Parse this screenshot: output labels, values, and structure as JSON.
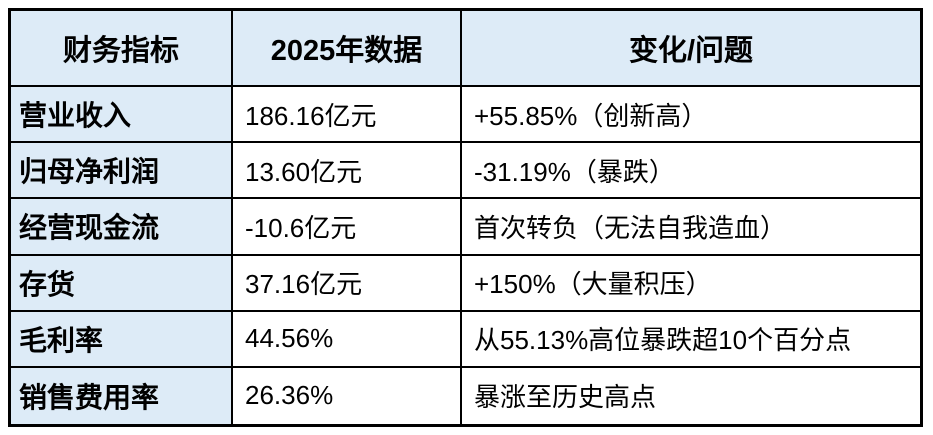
{
  "table": {
    "headers": [
      "财务指标",
      "2025年数据",
      "变化/问题"
    ],
    "rows": [
      [
        "营业收入",
        "186.16亿元",
        "+55.85%（创新高）"
      ],
      [
        "归母净利润",
        "13.60亿元",
        "-31.19%（暴跌）"
      ],
      [
        "经营现金流",
        "-10.6亿元",
        "首次转负（无法自我造血）"
      ],
      [
        "存货",
        "37.16亿元",
        "+150%（大量积压）"
      ],
      [
        "毛利率",
        "44.56%",
        "从55.13%高位暴跌超10个百分点"
      ],
      [
        "销售费用率",
        "26.36%",
        "暴涨至历史高点"
      ]
    ]
  },
  "colors": {
    "header_bg": "#DDEBF7",
    "row_label_bg": "#DDEBF7",
    "data_cell_bg": "#FFFFFF",
    "border": "#000000",
    "text": "#000000"
  },
  "chart_data": {
    "type": "table",
    "columns": [
      "财务指标",
      "2025年数据",
      "变化/问题"
    ],
    "rows": [
      {
        "indicator": "营业收入",
        "value_2025": "186.16亿元",
        "change_note": "+55.85%（创新高）",
        "change_pct": 55.85
      },
      {
        "indicator": "归母净利润",
        "value_2025": "13.60亿元",
        "change_note": "-31.19%（暴跌）",
        "change_pct": -31.19
      },
      {
        "indicator": "经营现金流",
        "value_2025": "-10.6亿元",
        "change_note": "首次转负（无法自我造血）",
        "change_pct": null
      },
      {
        "indicator": "存货",
        "value_2025": "37.16亿元",
        "change_note": "+150%（大量积压）",
        "change_pct": 150
      },
      {
        "indicator": "毛利率",
        "value_2025": "44.56%",
        "change_note": "从55.13%高位暴跌超10个百分点",
        "change_pct": null
      },
      {
        "indicator": "销售费用率",
        "value_2025": "26.36%",
        "change_note": "暴涨至历史高点",
        "change_pct": null
      }
    ],
    "title": "",
    "notes": "Excel-style table; header row and first column shaded light blue #DDEBF7; black grid borders"
  }
}
